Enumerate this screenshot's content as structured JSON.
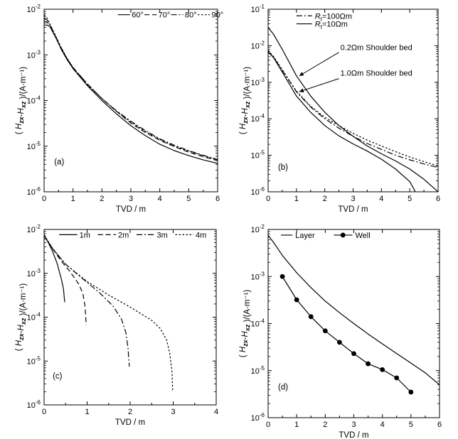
{
  "chart_data": [
    {
      "type": "line",
      "panel_label": "(a)",
      "xlabel": "TVD / m",
      "ylabel": "( H_zx-H_xz )/(A·m⁻¹)",
      "xlim": [
        0,
        6
      ],
      "ylim_log10": [
        -6,
        -2
      ],
      "y_scale": "log",
      "x_ticks": [
        "0",
        "1",
        "2",
        "3",
        "4",
        "5",
        "6"
      ],
      "legend_position": "top",
      "series": [
        {
          "name": "60°",
          "style": "solid",
          "x": [
            0,
            0.1,
            0.2,
            0.4,
            0.6,
            0.8,
            1.0,
            1.5,
            2.0,
            2.5,
            3.0,
            3.5,
            4.0,
            4.5,
            5.0,
            5.5,
            6.0
          ],
          "y": [
            0.0045,
            0.0045,
            0.0042,
            0.0024,
            0.0013,
            0.00078,
            0.0005,
            0.00021,
            0.0001,
            5.1e-05,
            2.8e-05,
            1.7e-05,
            1.1e-05,
            8e-06,
            6.2e-06,
            5e-06,
            4.2e-06
          ]
        },
        {
          "name": "70°",
          "style": "dash",
          "x": [
            0,
            0.1,
            0.2,
            0.4,
            0.6,
            0.8,
            1.0,
            1.5,
            2.0,
            2.5,
            3.0,
            3.5,
            4.0,
            4.5,
            5.0,
            5.5,
            6.0
          ],
          "y": [
            0.0055,
            0.0052,
            0.0044,
            0.0025,
            0.0013,
            0.0008,
            0.00052,
            0.00023,
            0.00011,
            5.8e-05,
            3.2e-05,
            2e-05,
            1.35e-05,
            9.8e-06,
            7.4e-06,
            5.9e-06,
            4.8e-06
          ]
        },
        {
          "name": "80°",
          "style": "dashdot",
          "x": [
            0,
            0.1,
            0.2,
            0.4,
            0.6,
            0.8,
            1.0,
            1.5,
            2.0,
            2.5,
            3.0,
            3.5,
            4.0,
            4.5,
            5.0,
            5.5,
            6.0
          ],
          "y": [
            0.0065,
            0.0058,
            0.0046,
            0.0025,
            0.0014,
            0.00082,
            0.00053,
            0.00023,
            0.00011,
            6e-05,
            3.5e-05,
            2.2e-05,
            1.45e-05,
            1.05e-05,
            8e-06,
            6.3e-06,
            5.1e-06
          ]
        },
        {
          "name": "90°",
          "style": "dot",
          "x": [
            0,
            0.1,
            0.2,
            0.4,
            0.6,
            0.8,
            1.0,
            1.5,
            2.0,
            2.5,
            3.0,
            3.5,
            4.0,
            4.5,
            5.0,
            5.5,
            6.0
          ],
          "y": [
            0.0075,
            0.0064,
            0.0048,
            0.0026,
            0.0014,
            0.00083,
            0.00053,
            0.00022,
            0.00011,
            5.8e-05,
            3.4e-05,
            2.1e-05,
            1.4e-05,
            1e-05,
            7.8e-06,
            6.2e-06,
            5e-06
          ]
        }
      ]
    },
    {
      "type": "line",
      "panel_label": "(b)",
      "xlabel": "TVD / m",
      "ylabel": "( H_zx-H_xz )/(A·m⁻¹)",
      "xlim": [
        0,
        6
      ],
      "ylim_log10": [
        -6,
        -1
      ],
      "y_scale": "log",
      "x_ticks": [
        "0",
        "1",
        "2",
        "3",
        "4",
        "5",
        "6"
      ],
      "legend_position": "top",
      "series": [
        {
          "name": "Rt=100Ωm (0.2Ωm shoulder bed)",
          "style": "dashdot",
          "legend": false,
          "x": [
            0,
            0.2,
            0.5,
            1.0,
            1.5,
            2.0,
            2.5,
            3.0,
            3.5,
            4.0,
            4.5,
            5.0,
            5.5,
            6.0
          ],
          "y": [
            0.0068,
            0.0047,
            0.0021,
            0.00055,
            0.00021,
            0.0001,
            5.5e-05,
            3.3e-05,
            2.1e-05,
            1.45e-05,
            1e-05,
            7.5e-06,
            5.8e-06,
            4.6e-06
          ]
        },
        {
          "name": "Rt=100Ωm (1.0Ωm shoulder bed)",
          "style": "dot",
          "legend": false,
          "x": [
            0,
            0.2,
            0.5,
            1.0,
            1.5,
            2.0,
            2.5,
            3.0,
            3.5,
            4.0,
            4.5,
            5.0,
            5.5,
            6.0
          ],
          "y": [
            0.0075,
            0.005,
            0.0022,
            0.00057,
            0.00022,
            0.00011,
            6.5e-05,
            4e-05,
            2.6e-05,
            1.8e-05,
            1.25e-05,
            9e-06,
            6.7e-06,
            5.1e-06
          ]
        },
        {
          "name": "Rt=10Ωm (0.2Ωm shoulder bed)",
          "style": "solid",
          "legend": false,
          "x": [
            0,
            0.2,
            0.5,
            1.0,
            1.5,
            2.0,
            2.5,
            3.0,
            3.5,
            4.0,
            4.5,
            5.0,
            5.2
          ],
          "y": [
            0.007,
            0.0046,
            0.0019,
            0.00042,
            0.00015,
            6.5e-05,
            3.4e-05,
            2.05e-05,
            1.3e-05,
            7.8e-06,
            4.2e-06,
            1.9e-06,
            1e-06
          ]
        },
        {
          "name": "Rt=10Ωm (1.0Ωm shoulder bed)",
          "style": "solid",
          "legend": false,
          "x": [
            0,
            0.2,
            0.5,
            1.0,
            1.5,
            2.0,
            2.5,
            3.0,
            3.5,
            4.0,
            4.5,
            5.0,
            5.5,
            6.0
          ],
          "y": [
            0.032,
            0.02,
            0.008,
            0.0015,
            0.00042,
            0.00015,
            6.5e-05,
            3.3e-05,
            1.8e-05,
            1.1e-05,
            7e-06,
            4.2e-06,
            2.2e-06,
            1e-06
          ]
        }
      ],
      "legend": [
        {
          "label": "R_t=100Ωm",
          "style": "dashdot"
        },
        {
          "label": "R_t=10Ωm",
          "style": "solid"
        }
      ],
      "annotations": [
        "0.2Ωm Shoulder bed",
        "1.0Ωm Shoulder bed"
      ]
    },
    {
      "type": "line",
      "panel_label": "(c)",
      "xlabel": "TVD / m",
      "ylabel": "( H_zx-H_xz )/(A·m⁻¹)",
      "xlim": [
        0,
        4
      ],
      "ylim_log10": [
        -6,
        -2
      ],
      "y_scale": "log",
      "x_ticks": [
        "0",
        "1",
        "2",
        "3",
        "4"
      ],
      "legend_position": "top",
      "series": [
        {
          "name": "1m",
          "style": "solid",
          "x": [
            0,
            0.1,
            0.2,
            0.3,
            0.4,
            0.45,
            0.48
          ],
          "y": [
            0.0072,
            0.005,
            0.0031,
            0.0017,
            0.00075,
            0.00045,
            0.00022
          ]
        },
        {
          "name": "2m",
          "style": "dash",
          "x": [
            0,
            0.2,
            0.4,
            0.6,
            0.8,
            0.9,
            0.95,
            0.98
          ],
          "y": [
            0.0072,
            0.0036,
            0.0019,
            0.0011,
            0.00058,
            0.00035,
            0.00018,
            6.5e-05
          ]
        },
        {
          "name": "3m",
          "style": "dashdot",
          "x": [
            0,
            0.2,
            0.5,
            1.0,
            1.3,
            1.6,
            1.8,
            1.9,
            1.95,
            1.98
          ],
          "y": [
            0.0072,
            0.0036,
            0.0016,
            0.00062,
            0.00035,
            0.00018,
            9e-05,
            4.5e-05,
            2e-05,
            7.5e-06
          ]
        },
        {
          "name": "4m",
          "style": "dot",
          "x": [
            0,
            0.2,
            0.5,
            1.0,
            1.5,
            2.0,
            2.5,
            2.7,
            2.85,
            2.92,
            2.97,
            2.99
          ],
          "y": [
            0.0075,
            0.0037,
            0.0016,
            0.00065,
            0.00032,
            0.00017,
            8.5e-05,
            5.5e-05,
            3e-05,
            1.5e-05,
            6e-06,
            2e-06
          ]
        }
      ]
    },
    {
      "type": "line",
      "panel_label": "(d)",
      "xlabel": "TVD / m",
      "ylabel": "( H_zx-H_xz )/(A·m⁻¹)",
      "xlim": [
        0,
        6
      ],
      "ylim_log10": [
        -6,
        -2
      ],
      "y_scale": "log",
      "x_ticks": [
        "0",
        "1",
        "2",
        "3",
        "4",
        "5",
        "6"
      ],
      "legend_position": "top",
      "series": [
        {
          "name": "Layer",
          "style": "solid",
          "x": [
            0,
            0.2,
            0.5,
            1.0,
            1.5,
            2.0,
            2.5,
            3.0,
            3.5,
            4.0,
            4.5,
            5.0,
            5.5,
            6.0
          ],
          "y": [
            0.0075,
            0.0052,
            0.0028,
            0.0012,
            0.00058,
            0.0003,
            0.00017,
            0.0001,
            6e-05,
            3.7e-05,
            2.3e-05,
            1.45e-05,
            9e-06,
            5e-06
          ]
        },
        {
          "name": "Well",
          "style": "solid-markers",
          "x": [
            0.5,
            1.0,
            1.5,
            2.0,
            2.5,
            3.0,
            3.5,
            4.0,
            4.5,
            5.0
          ],
          "y": [
            0.001,
            0.00032,
            0.00014,
            7e-05,
            4e-05,
            2.3e-05,
            1.4e-05,
            1.05e-05,
            7e-06,
            3.5e-06
          ]
        }
      ]
    }
  ]
}
